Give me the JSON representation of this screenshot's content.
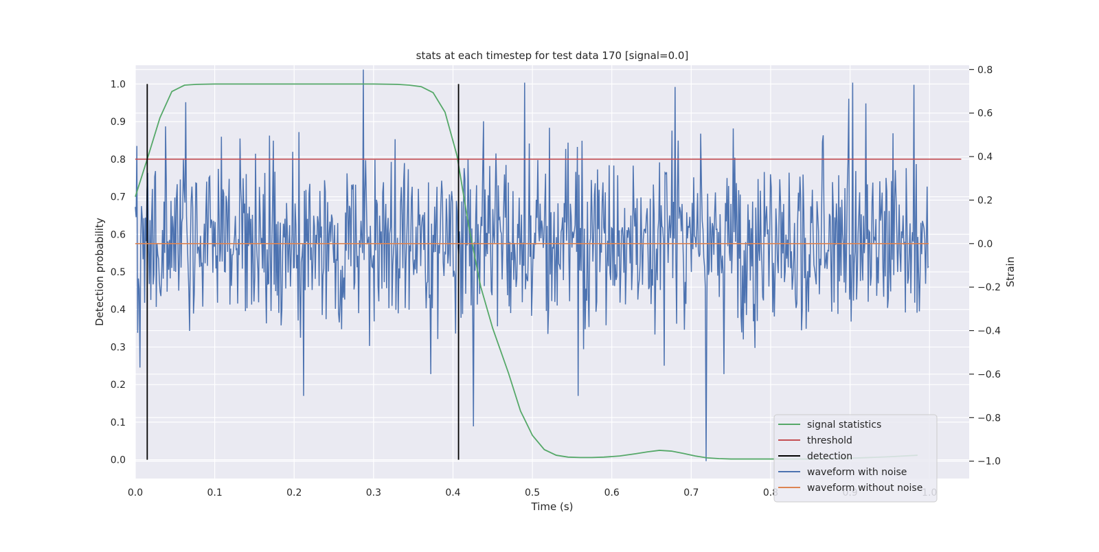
{
  "chart_data": {
    "type": "line",
    "title": "stats at each timestep for test data 170 [signal=0.0]",
    "xlabel": "Time (s)",
    "ylabel_left": "Detection probability",
    "ylabel_right": "Strain",
    "xlim": [
      0.0,
      1.05
    ],
    "ylim_left": [
      -0.05,
      1.05
    ],
    "ylim_right": [
      -1.08,
      0.82
    ],
    "x_ticks": [
      0.0,
      0.1,
      0.2,
      0.3,
      0.4,
      0.5,
      0.6,
      0.7,
      0.8,
      0.9,
      1.0
    ],
    "x_tick_labels": [
      "0.0",
      "0.1",
      "0.2",
      "0.3",
      "0.4",
      "0.5",
      "0.6",
      "0.7",
      "0.8",
      "0.9",
      "1.0"
    ],
    "y_left_ticks": [
      0.0,
      0.1,
      0.2,
      0.3,
      0.4,
      0.5,
      0.6,
      0.7,
      0.8,
      0.9,
      1.0
    ],
    "y_left_tick_labels": [
      "0.0",
      "0.1",
      "0.2",
      "0.3",
      "0.4",
      "0.5",
      "0.6",
      "0.7",
      "0.8",
      "0.9",
      "1.0"
    ],
    "y_right_ticks": [
      -1.0,
      -0.8,
      -0.6,
      -0.4,
      -0.2,
      0.0,
      0.2,
      0.4,
      0.6,
      0.8
    ],
    "y_right_tick_labels": [
      "−1.0",
      "−0.8",
      "−0.6",
      "−0.4",
      "−0.2",
      "0.0",
      "0.2",
      "0.4",
      "0.6",
      "0.8"
    ],
    "grid": true,
    "legend_position": "lower-right",
    "colors": {
      "background": "#eaeaf2",
      "grid": "#ffffff",
      "signal_statistics": "#55a868",
      "threshold": "#c44e52",
      "detection": "#000000",
      "waveform_with_noise": "#4c72b0",
      "waveform_without_noise": "#dd8452"
    },
    "series": [
      {
        "name": "signal statistics",
        "axis": "left",
        "x": [
          0.0,
          0.015,
          0.031,
          0.046,
          0.062,
          0.077,
          0.1,
          0.15,
          0.2,
          0.25,
          0.3,
          0.33,
          0.345,
          0.36,
          0.375,
          0.39,
          0.405,
          0.42,
          0.435,
          0.45,
          0.47,
          0.485,
          0.5,
          0.515,
          0.53,
          0.545,
          0.56,
          0.575,
          0.59,
          0.61,
          0.63,
          0.645,
          0.66,
          0.675,
          0.69,
          0.705,
          0.72,
          0.735,
          0.75,
          0.8,
          0.85,
          0.9,
          0.95,
          0.985
        ],
        "y": [
          0.7,
          0.8,
          0.91,
          0.98,
          0.997,
          0.999,
          1.0,
          1.0,
          1.0,
          1.0,
          1.0,
          0.999,
          0.997,
          0.993,
          0.977,
          0.925,
          0.81,
          0.62,
          0.46,
          0.35,
          0.23,
          0.13,
          0.065,
          0.027,
          0.012,
          0.007,
          0.006,
          0.006,
          0.007,
          0.01,
          0.016,
          0.021,
          0.025,
          0.023,
          0.017,
          0.01,
          0.005,
          0.003,
          0.002,
          0.002,
          0.002,
          0.004,
          0.008,
          0.012
        ]
      },
      {
        "name": "threshold",
        "axis": "left",
        "x": [
          0.0,
          1.04
        ],
        "y": [
          0.8,
          0.8
        ]
      },
      {
        "name": "detection",
        "axis": "left",
        "x": [
          0.015,
          0.407
        ],
        "y_range": [
          0.0,
          1.0
        ]
      },
      {
        "name": "waveform with noise",
        "axis": "right",
        "x_range": [
          0.0,
          0.999
        ],
        "n_points": 1024,
        "approx_std": 0.2,
        "notable_values": [
          {
            "x": 0.287,
            "y": 0.8
          },
          {
            "x": 0.719,
            "y": -1.0
          },
          {
            "x": 0.426,
            "y": -0.84
          },
          {
            "x": 0.212,
            "y": -0.7
          },
          {
            "x": 0.558,
            "y": -0.7
          },
          {
            "x": 0.006,
            "y": -0.57
          },
          {
            "x": 0.49,
            "y": 0.74
          },
          {
            "x": 0.68,
            "y": 0.72
          },
          {
            "x": 0.903,
            "y": 0.74
          },
          {
            "x": 0.98,
            "y": 0.73
          },
          {
            "x": 0.063,
            "y": 0.65
          }
        ]
      },
      {
        "name": "waveform without noise",
        "axis": "right",
        "x": [
          0.0,
          0.999
        ],
        "y": [
          0.0,
          0.0
        ]
      }
    ],
    "legend": [
      {
        "label": "signal statistics",
        "color": "#55a868"
      },
      {
        "label": "threshold",
        "color": "#c44e52"
      },
      {
        "label": "detection",
        "color": "#000000"
      },
      {
        "label": "waveform with noise",
        "color": "#4c72b0"
      },
      {
        "label": "waveform without noise",
        "color": "#dd8452"
      }
    ]
  }
}
